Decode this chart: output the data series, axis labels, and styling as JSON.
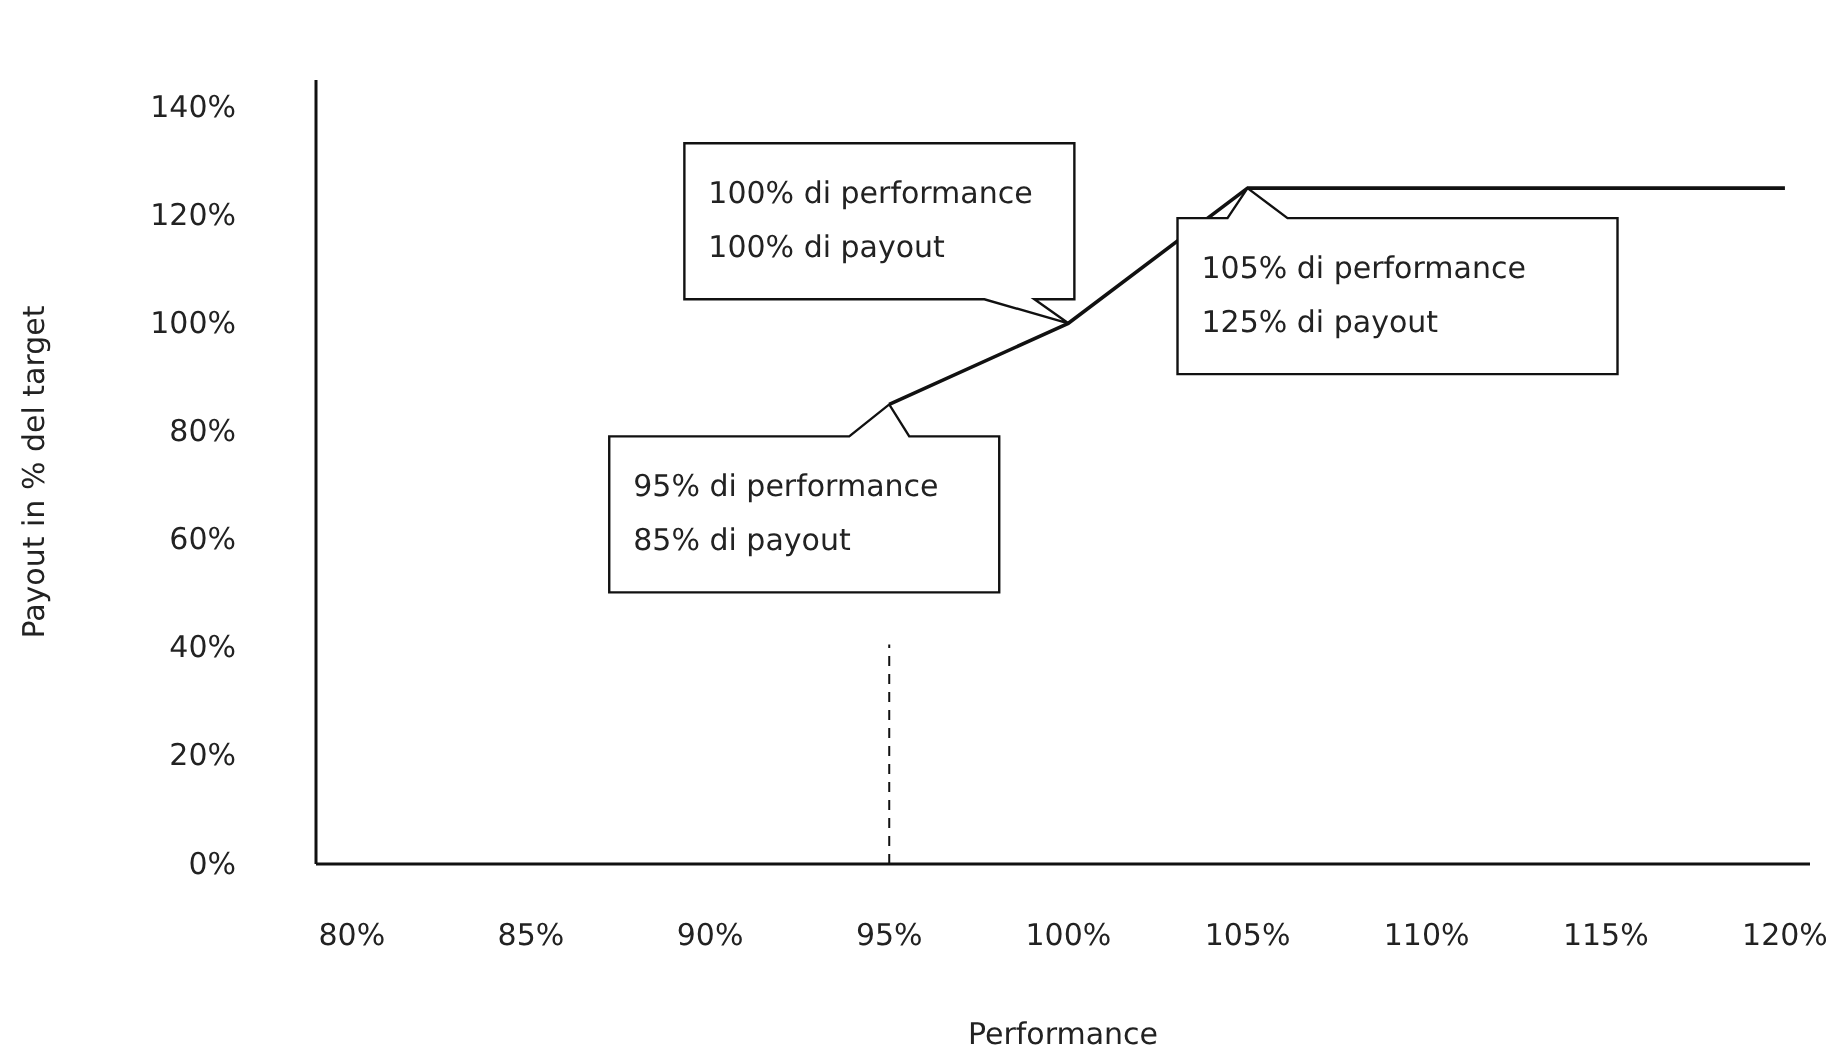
{
  "chart_data": {
    "type": "line",
    "xlabel": "Performance",
    "ylabel": "Payout in % del target",
    "x": [
      95,
      100,
      105,
      120
    ],
    "series": [
      {
        "color": "#111111",
        "values": [
          85,
          100,
          125,
          125
        ]
      }
    ],
    "xlim": [
      79,
      120.7
    ],
    "xticks": [
      {
        "value": 80,
        "label": "80%"
      },
      {
        "value": 85,
        "label": "85%"
      },
      {
        "value": 90,
        "label": "90%"
      },
      {
        "value": 95,
        "label": "95%"
      },
      {
        "value": 100,
        "label": "100%"
      },
      {
        "value": 105,
        "label": "105%"
      },
      {
        "value": 110,
        "label": "110%"
      },
      {
        "value": 115,
        "label": "115%"
      },
      {
        "value": 120,
        "label": "120%"
      }
    ],
    "ylim": [
      0,
      145
    ],
    "yticks": [
      {
        "value": 0,
        "label": "0%"
      },
      {
        "value": 20,
        "label": "20%"
      },
      {
        "value": 40,
        "label": "40%"
      },
      {
        "value": 60,
        "label": "60%"
      },
      {
        "value": 80,
        "label": "80%"
      },
      {
        "value": 100,
        "label": "100%"
      },
      {
        "value": 120,
        "label": "120%"
      },
      {
        "value": 140,
        "label": "140%"
      }
    ],
    "ref_lines": [
      {
        "axis": "x",
        "value": 95,
        "line_style": "dashed"
      }
    ],
    "annotations": [
      {
        "text": "100% di performance\n100% di payout",
        "x": 100,
        "y": 100
      },
      {
        "text": "105% di performance\n125% di payout",
        "x": 105,
        "y": 125
      },
      {
        "text": "95% di performance\n85% di payout",
        "x": 95,
        "y": 85
      }
    ],
    "grid": false,
    "marker": "none",
    "line_style": "solid"
  }
}
